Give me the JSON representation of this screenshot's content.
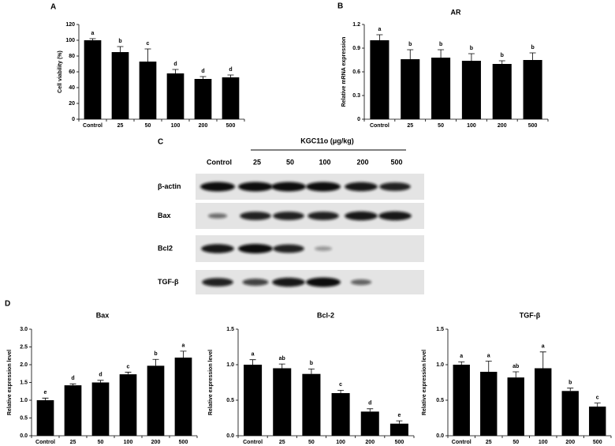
{
  "chart_data": [
    {
      "type": "bar",
      "panel": "A",
      "y_label": "Cell viability (%)",
      "categories": [
        "Control",
        "25",
        "50",
        "100",
        "200",
        "500"
      ],
      "values": [
        100,
        85,
        73,
        58,
        51,
        53
      ],
      "errors": [
        2,
        7,
        16,
        5,
        3,
        3
      ],
      "annotations": [
        "a",
        "b",
        "c",
        "d",
        "d",
        "d"
      ],
      "color": "#000000",
      "ylim": [
        0,
        120
      ],
      "yticks": [
        0,
        20,
        40,
        60,
        80,
        100,
        120
      ]
    },
    {
      "type": "bar",
      "panel": "B",
      "title": "AR",
      "y_label": "Relative mRNA expression",
      "categories": [
        "Control",
        "25",
        "50",
        "100",
        "200",
        "500"
      ],
      "values": [
        1.0,
        0.76,
        0.78,
        0.74,
        0.7,
        0.75
      ],
      "errors": [
        0.07,
        0.12,
        0.1,
        0.09,
        0.04,
        0.09
      ],
      "annotations": [
        "a",
        "b",
        "b",
        "b",
        "b",
        "b"
      ],
      "color": "#000000",
      "ylim": [
        0,
        1.2
      ],
      "yticks": [
        0,
        0.3,
        0.6,
        0.9,
        1.2
      ]
    },
    {
      "type": "bar",
      "panel": "D",
      "title": "Bax",
      "y_label": "Relative expression level",
      "categories": [
        "Control",
        "25",
        "50",
        "100",
        "200",
        "500"
      ],
      "values": [
        1.0,
        1.42,
        1.5,
        1.73,
        1.97,
        2.2
      ],
      "errors": [
        0.06,
        0.04,
        0.06,
        0.06,
        0.18,
        0.18
      ],
      "annotations": [
        "e",
        "d",
        "d",
        "c",
        "b",
        "a"
      ],
      "color": "#000000",
      "ylim": [
        0,
        3
      ],
      "yticks": [
        {
          "value": 0,
          "label": "0.0"
        },
        0.5,
        {
          "value": 1,
          "label": "1.0"
        },
        1.5,
        {
          "value": 2,
          "label": "2.0"
        },
        2.5,
        {
          "value": 3,
          "label": "3.0"
        }
      ]
    },
    {
      "type": "bar",
      "title": "Bcl-2",
      "y_label": "Relative expression level",
      "categories": [
        "Control",
        "25",
        "50",
        "100",
        "200",
        "500"
      ],
      "values": [
        1.0,
        0.95,
        0.87,
        0.6,
        0.34,
        0.17
      ],
      "errors": [
        0.07,
        0.06,
        0.07,
        0.04,
        0.04,
        0.04
      ],
      "annotations": [
        "a",
        "ab",
        "b",
        "c",
        "d",
        "e"
      ],
      "color": "#000000",
      "ylim": [
        0,
        1.5
      ],
      "yticks": [
        {
          "value": 0,
          "label": "0.0"
        },
        0.5,
        {
          "value": 1,
          "label": "1.0"
        },
        1.5
      ]
    },
    {
      "type": "bar",
      "title": "TGF-β",
      "y_label": "Relative expression level",
      "categories": [
        "Control",
        "25",
        "50",
        "100",
        "200",
        "500"
      ],
      "values": [
        1.0,
        0.9,
        0.82,
        0.95,
        0.63,
        0.41
      ],
      "errors": [
        0.04,
        0.15,
        0.08,
        0.23,
        0.04,
        0.05
      ],
      "annotations": [
        "a",
        "a",
        "ab",
        "a",
        "b",
        "c"
      ],
      "color": "#000000",
      "ylim": [
        0,
        1.5
      ],
      "yticks": [
        {
          "value": 0,
          "label": "0.0"
        },
        0.5,
        {
          "value": 1,
          "label": "1.0"
        },
        1.5
      ]
    }
  ],
  "blot": {
    "panel": "C",
    "header": "KGC11o (μg/kg)",
    "lanes": [
      "Control",
      "25",
      "50",
      "100",
      "200",
      "500"
    ],
    "rows": [
      "β-actin",
      "Bax",
      "Bcl2",
      "TGF-β"
    ]
  }
}
